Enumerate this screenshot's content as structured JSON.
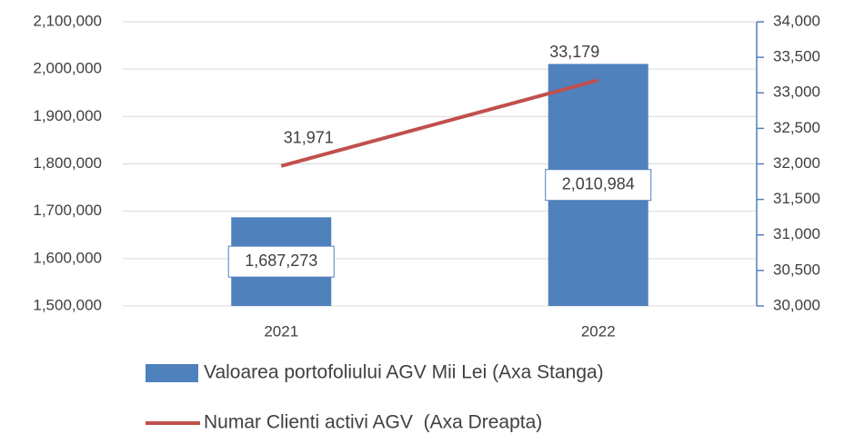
{
  "chart_data": {
    "type": "bar_line",
    "categories": [
      "2021",
      "2022"
    ],
    "series": [
      {
        "name": "Valoarea portofoliului AGV Mii Lei (Axa Stanga)",
        "type": "bar",
        "color": "#4f81bd",
        "values": [
          1687273,
          2010984
        ],
        "value_labels": [
          "1,687,273",
          "2,010,984"
        ]
      },
      {
        "name": "Numar Clienti activi AGV  (Axa Dreapta)",
        "type": "line",
        "axis": "y2",
        "color": "#c0504d",
        "values": [
          31971,
          33179
        ],
        "value_labels": [
          "31,971",
          "33,179"
        ]
      }
    ],
    "ylim": [
      1500000,
      2100000
    ],
    "yticks": [
      {
        "value": 1500000,
        "label": "1,500,000"
      },
      {
        "value": 1600000,
        "label": "1,600,000"
      },
      {
        "value": 1700000,
        "label": "1,700,000"
      },
      {
        "value": 1800000,
        "label": "1,800,000"
      },
      {
        "value": 1900000,
        "label": "1,900,000"
      },
      {
        "value": 2000000,
        "label": "2,000,000"
      },
      {
        "value": 2100000,
        "label": "2,100,000"
      }
    ],
    "y2lim": [
      30000,
      34000
    ],
    "y2ticks": [
      {
        "value": 30000,
        "label": "30,000"
      },
      {
        "value": 30500,
        "label": "30,500"
      },
      {
        "value": 31000,
        "label": "31,000"
      },
      {
        "value": 31500,
        "label": "31,500"
      },
      {
        "value": 32000,
        "label": "32,000"
      },
      {
        "value": 32500,
        "label": "32,500"
      },
      {
        "value": 33000,
        "label": "33,000"
      },
      {
        "value": 33500,
        "label": "33,500"
      },
      {
        "value": 34000,
        "label": "34,000"
      }
    ],
    "grid": true
  }
}
